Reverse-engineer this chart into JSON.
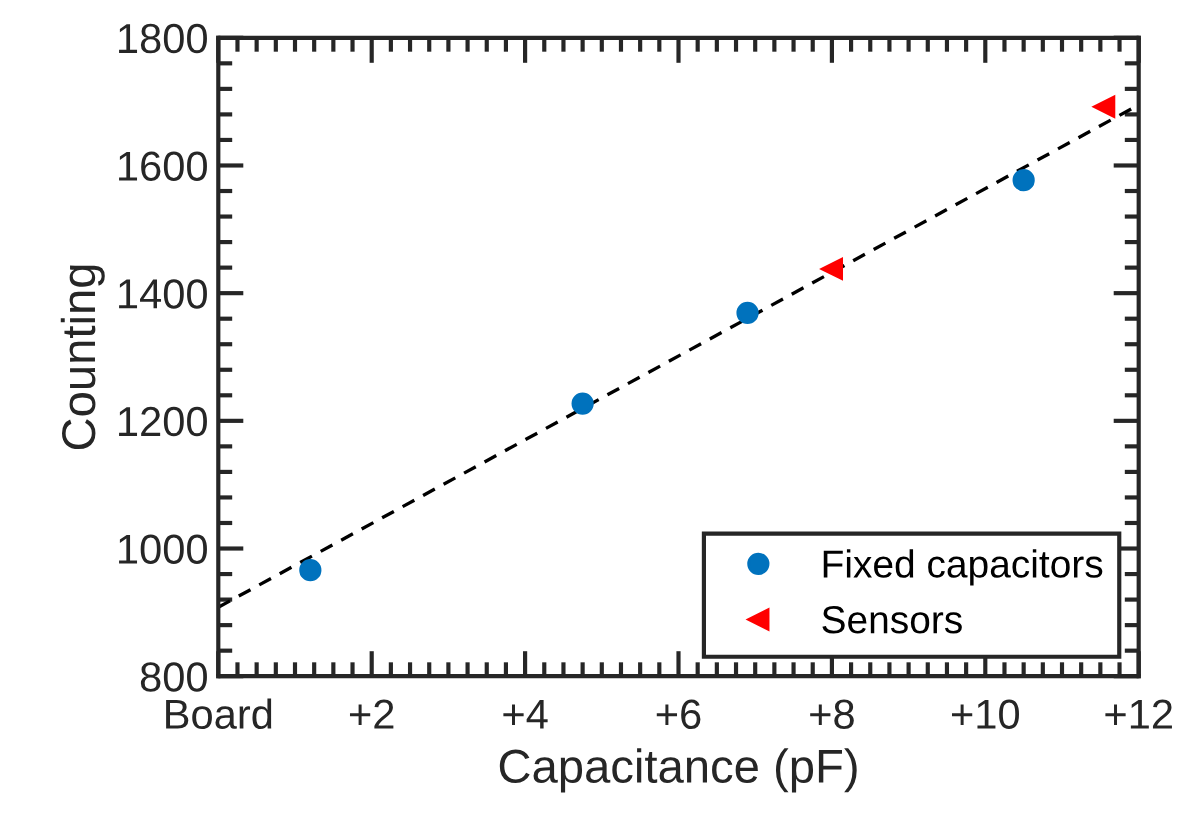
{
  "chart_data": {
    "type": "scatter",
    "xlabel": "Capacitance (pF)",
    "ylabel": "Counting",
    "xlim": [
      0,
      12
    ],
    "ylim": [
      800,
      1800
    ],
    "xticks": [
      {
        "value": 0,
        "label": "Board"
      },
      {
        "value": 2,
        "label": "+2"
      },
      {
        "value": 4,
        "label": "+4"
      },
      {
        "value": 6,
        "label": "+6"
      },
      {
        "value": 8,
        "label": "+8"
      },
      {
        "value": 10,
        "label": "+10"
      },
      {
        "value": 12,
        "label": "+12"
      }
    ],
    "yticks": [
      800,
      1000,
      1200,
      1400,
      1600,
      1800
    ],
    "grid": false,
    "legend": "bottom right",
    "series": [
      {
        "type": "line",
        "x": [
          0,
          12
        ],
        "values": [
          908,
          1695
        ],
        "color": "#000000",
        "line_style": "dashed",
        "marker": "none"
      },
      {
        "name": "Fixed capacitors",
        "x": [
          1.2,
          4.75,
          6.9,
          10.5
        ],
        "values": [
          966,
          1227,
          1369,
          1577
        ],
        "color": "#0072bd",
        "marker": "circle"
      },
      {
        "name": "Sensors",
        "x": [
          8.0,
          11.55
        ],
        "values": [
          1438,
          1692
        ],
        "color": "#ff0000",
        "marker": "triangle"
      }
    ]
  }
}
